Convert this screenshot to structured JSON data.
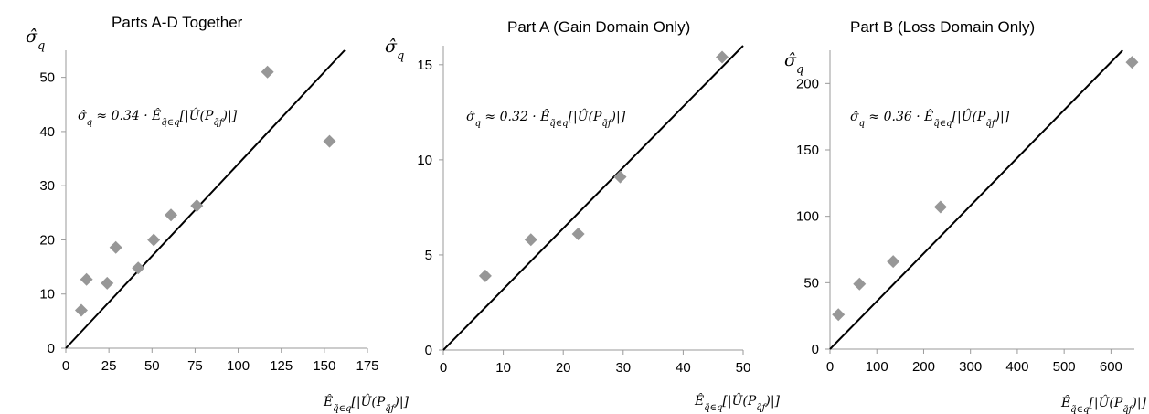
{
  "chart_data": [
    {
      "type": "scatter",
      "title": "Parts A-D Together",
      "ylabel": "σ̂_q",
      "xlabel": "Ê_{q̃∈q}[|Û(P_{q̃f})|]",
      "annotation": "σ̂_q ≈ 0.34 · Ê_{q̃∈q}[|Û(P_{q̃f})|]",
      "slope": 0.34,
      "xlim": [
        0,
        175
      ],
      "ylim": [
        0,
        55
      ],
      "xticks": [
        0,
        25,
        50,
        75,
        100,
        125,
        150,
        175
      ],
      "yticks": [
        0,
        10,
        20,
        30,
        40,
        50
      ],
      "points": [
        {
          "x": 9,
          "y": 7
        },
        {
          "x": 12,
          "y": 12.7
        },
        {
          "x": 24,
          "y": 12
        },
        {
          "x": 29,
          "y": 18.6
        },
        {
          "x": 42,
          "y": 14.8
        },
        {
          "x": 51,
          "y": 20
        },
        {
          "x": 61,
          "y": 24.6
        },
        {
          "x": 76,
          "y": 26.3
        },
        {
          "x": 117,
          "y": 51
        },
        {
          "x": 153,
          "y": 38.2
        }
      ]
    },
    {
      "type": "scatter",
      "title": "Part A (Gain Domain Only)",
      "ylabel": "σ̂_q",
      "xlabel": "Ê_{q̃∈q}[|Û(P_{q̃f})|]",
      "annotation": "σ̂_q ≈ 0.32 · Ê_{q̃∈q}[|Û(P_{q̃f})|]",
      "slope": 0.32,
      "xlim": [
        0,
        50
      ],
      "ylim": [
        0,
        16
      ],
      "xticks": [
        0,
        10,
        20,
        30,
        40,
        50
      ],
      "yticks": [
        0,
        5,
        10,
        15
      ],
      "points": [
        {
          "x": 7,
          "y": 3.9
        },
        {
          "x": 14.6,
          "y": 5.8
        },
        {
          "x": 22.5,
          "y": 6.1
        },
        {
          "x": 29.5,
          "y": 9.1
        },
        {
          "x": 46.5,
          "y": 15.4
        }
      ]
    },
    {
      "type": "scatter",
      "title": "Part B (Loss Domain Only)",
      "ylabel": "σ̂_q",
      "xlabel": "Ê_{q̃∈q}[|Û(P_{q̃f})|]",
      "annotation": "σ̂_q ≈ 0.36 · Ê_{q̃∈q}[|Û(P_{q̃f})|]",
      "slope": 0.36,
      "xlim": [
        0,
        650
      ],
      "ylim": [
        0,
        225
      ],
      "xticks": [
        0,
        100,
        200,
        300,
        400,
        500,
        600
      ],
      "yticks": [
        0,
        50,
        100,
        150,
        200
      ],
      "points": [
        {
          "x": 18,
          "y": 26
        },
        {
          "x": 63,
          "y": 49
        },
        {
          "x": 135,
          "y": 66
        },
        {
          "x": 236,
          "y": 107
        },
        {
          "x": 645,
          "y": 216
        }
      ]
    }
  ]
}
